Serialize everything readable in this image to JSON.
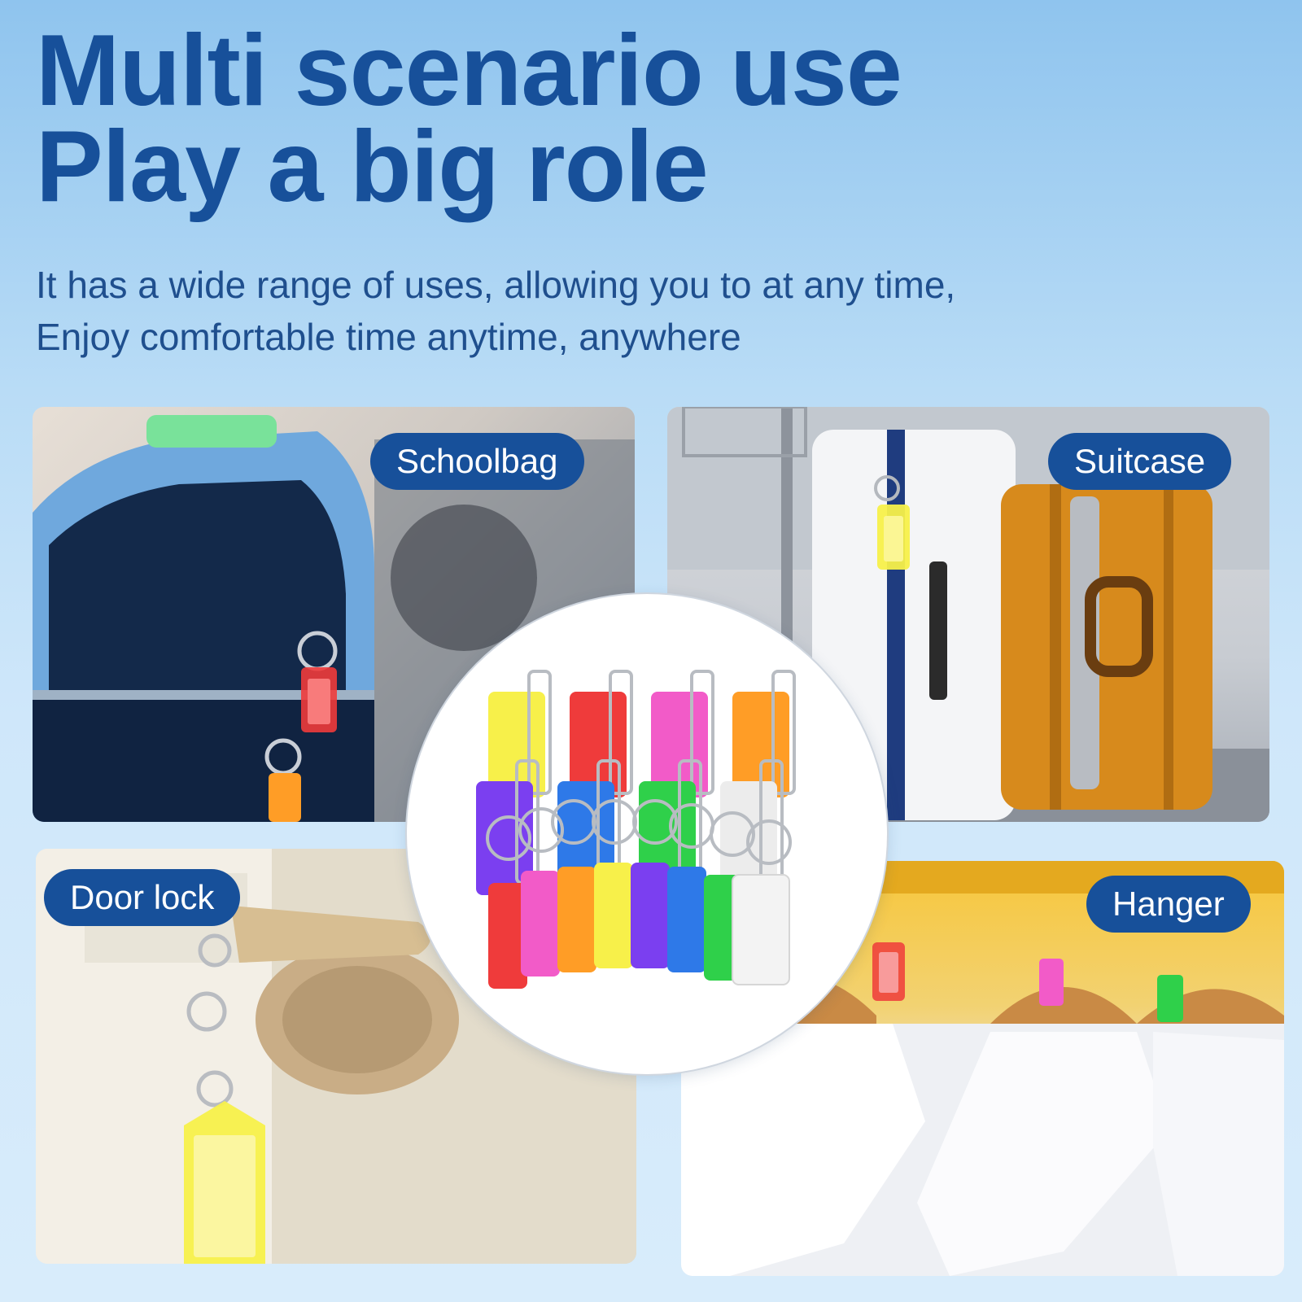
{
  "headline": {
    "line1": "Multi scenario use",
    "line2": "Play a big role"
  },
  "subtitle": {
    "line1": "It has a wide range of uses, allowing you to at any time,",
    "line2": "Enjoy comfortable time anytime, anywhere"
  },
  "scenarios": [
    {
      "label": "Schoolbag"
    },
    {
      "label": "Suitcase"
    },
    {
      "label": "Door lock"
    },
    {
      "label": "Hanger"
    }
  ],
  "colors": {
    "accent": "#17509a",
    "tag_colors": [
      "#f7f04a",
      "#ef3b3b",
      "#f25bc8",
      "#ff9d26",
      "#7b3ff0",
      "#2e79e8",
      "#2fd04a",
      "#f2f2f2"
    ]
  }
}
